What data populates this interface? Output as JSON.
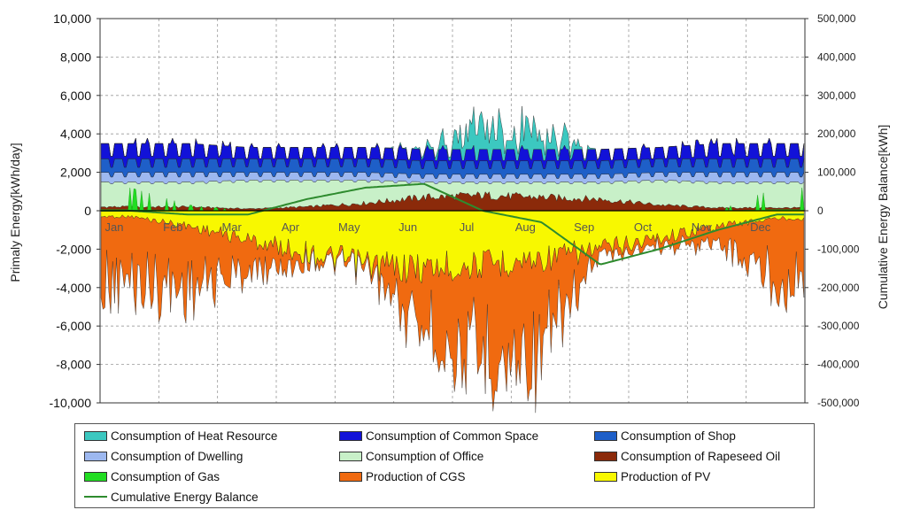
{
  "chart_data": {
    "type": "area",
    "title": "",
    "ylabel": "Primaly Energy[kWh/day]",
    "y2label": "Cumulative Energy Balance[kWh]",
    "ylim": [
      -10000,
      10000
    ],
    "y2lim": [
      -500000,
      500000
    ],
    "yticks": [
      "10,000",
      "8,000",
      "6,000",
      "4,000",
      "2,000",
      "0",
      "-2,000",
      "-4,000",
      "-6,000",
      "-8,000",
      "-10,000"
    ],
    "y2ticks": [
      "500,000",
      "400,000",
      "300,000",
      "200,000",
      "100,000",
      "0",
      "-100,000",
      "-200,000",
      "-300,000",
      "-400,000",
      "-500,000"
    ],
    "months": [
      "Jan",
      "Feb",
      "Mar",
      "Apr",
      "May",
      "Jun",
      "Jul",
      "Aug",
      "Sep",
      "Oct",
      "Nov",
      "Dec"
    ],
    "grid": true,
    "legend_position": "bottom",
    "colors": {
      "heat": "#3cc8c0",
      "common": "#1212d8",
      "shop": "#1e5fc8",
      "dwelling": "#9db8f0",
      "office": "#c8f0c8",
      "rapeseed": "#8b2a0a",
      "gas": "#22dd22",
      "cgs": "#f06a10",
      "pv": "#f8f800",
      "balance": "#2e8b2e"
    },
    "series": [
      {
        "name": "Consumption of Heat Resource",
        "monthly_peak_kwh_day": [
          0,
          0,
          0,
          0,
          0,
          200,
          2500,
          2000,
          0,
          0,
          0,
          0
        ]
      },
      {
        "name": "Consumption of Common Space",
        "monthly_avg_kwh_day": [
          800,
          800,
          600,
          600,
          600,
          600,
          600,
          600,
          600,
          600,
          800,
          800
        ]
      },
      {
        "name": "Consumption of Shop",
        "monthly_avg_kwh_day": [
          700,
          700,
          700,
          700,
          700,
          700,
          700,
          700,
          700,
          700,
          700,
          700
        ]
      },
      {
        "name": "Consumption of Dwelling",
        "monthly_avg_kwh_day": [
          500,
          500,
          400,
          400,
          400,
          400,
          400,
          400,
          400,
          400,
          500,
          500
        ]
      },
      {
        "name": "Consumption of Office",
        "monthly_avg_kwh_day": [
          1500,
          1500,
          1600,
          1600,
          1600,
          1500,
          1500,
          1500,
          1500,
          1600,
          1500,
          1500
        ]
      },
      {
        "name": "Consumption of Rapeseed Oil",
        "monthly_avg_kwh_day": [
          200,
          200,
          100,
          200,
          400,
          700,
          800,
          700,
          600,
          300,
          150,
          150
        ]
      },
      {
        "name": "Consumption of Gas",
        "monthly_peak_kwh_day": [
          1200,
          300,
          0,
          0,
          0,
          0,
          0,
          0,
          0,
          0,
          0,
          1200
        ]
      },
      {
        "name": "Production of CGS",
        "monthly_avg_kwh_day": [
          -3800,
          -3600,
          -1800,
          -400,
          -300,
          -3500,
          -5500,
          -5500,
          -500,
          -400,
          -1000,
          -3500
        ]
      },
      {
        "name": "Production of PV",
        "monthly_avg_kwh_day": [
          -300,
          -800,
          -1500,
          -2200,
          -2800,
          -3000,
          -2800,
          -2500,
          -2000,
          -1400,
          -800,
          -400
        ]
      },
      {
        "name": "Cumulative Energy Balance",
        "monthly_kwh": [
          0,
          -10000,
          -10000,
          30000,
          60000,
          70000,
          0,
          -30000,
          -140000,
          -100000,
          -50000,
          -10000
        ]
      }
    ]
  },
  "legend": [
    {
      "label": "Consumption of Heat Resource"
    },
    {
      "label": "Consumption of Common Space"
    },
    {
      "label": "Consumption of Shop"
    },
    {
      "label": "Consumption of Dwelling"
    },
    {
      "label": "Consumption of Office"
    },
    {
      "label": "Consumption of Rapeseed Oil"
    },
    {
      "label": "Consumption of Gas"
    },
    {
      "label": "Production of CGS"
    },
    {
      "label": "Production of PV"
    },
    {
      "label": "Cumulative Energy Balance"
    }
  ]
}
